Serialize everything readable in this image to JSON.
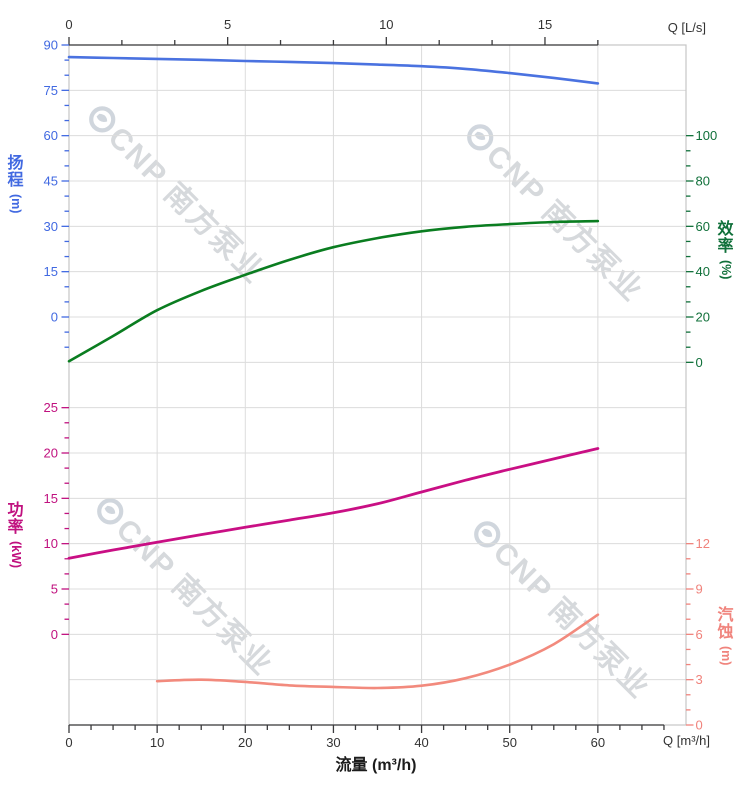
{
  "axes": {
    "top": {
      "title": "Q [L/s]",
      "ticks": [
        "0",
        "5",
        "10",
        "15"
      ]
    },
    "bottom": {
      "title": "流量 (m³/h)",
      "unit_label": "Q [m³/h]",
      "ticks": [
        "0",
        "10",
        "20",
        "30",
        "40",
        "50",
        "60"
      ]
    },
    "head": {
      "title_chars": [
        "扬",
        "程"
      ],
      "unit": "(m)",
      "ticks": [
        "90",
        "75",
        "60",
        "45",
        "30",
        "15",
        "0"
      ]
    },
    "eff": {
      "title_chars": [
        "效",
        "率"
      ],
      "unit": "(%)",
      "ticks": [
        "100",
        "80",
        "60",
        "40",
        "20",
        "0"
      ]
    },
    "power": {
      "title_chars": [
        "功",
        "率"
      ],
      "unit": "(kW)",
      "ticks": [
        "25",
        "20",
        "15",
        "10",
        "5",
        "0"
      ]
    },
    "npsh": {
      "title_chars": [
        "汽",
        "蚀"
      ],
      "unit": "(m)",
      "ticks": [
        "12",
        "9",
        "6",
        "3",
        "0"
      ]
    }
  },
  "colors": {
    "head_label": "#4169e1",
    "head_curve": "#4a72e0",
    "eff_label": "#10703a",
    "eff_curve": "#0a7d20",
    "power_label": "#c0117f",
    "power_curve": "#c90f84",
    "npsh_label": "#f0837c",
    "npsh_curve": "#f28a7d",
    "axis_dark": "#3a3a3c",
    "tick_text_dark": "#333333",
    "grid": "#dcdcdc",
    "border": "#c6c6c6",
    "watermark_text": "#d2d5d9",
    "watermark_logo": "#ccd2da"
  },
  "watermark": {
    "logo": "cnp-logo",
    "text_latin": "CNP",
    "text_cn": "南方泵业"
  },
  "chart_data": {
    "type": "line",
    "title": "",
    "x_axis": {
      "bottom_label": "流量 (m³/h)",
      "bottom_ticks_m3h": [
        0,
        10,
        20,
        30,
        40,
        50,
        60
      ],
      "bottom_range_m3h": [
        0,
        70
      ],
      "top_label": "Q [L/s]",
      "top_ticks_Ls": [
        0,
        5,
        10,
        15
      ]
    },
    "series": [
      {
        "name": "扬程",
        "unit": "m",
        "axis": "head",
        "axis_range": [
          0,
          90
        ],
        "x": [
          0,
          5,
          10,
          15,
          20,
          25,
          30,
          35,
          40,
          45,
          50,
          55,
          60
        ],
        "y": [
          86,
          85.7,
          85.4,
          85.1,
          84.7,
          84.4,
          84,
          83.5,
          83,
          82.1,
          80.7,
          79.1,
          77.3
        ]
      },
      {
        "name": "效率",
        "unit": "%",
        "axis": "eff",
        "axis_range": [
          0,
          100
        ],
        "x": [
          0,
          5,
          10,
          15,
          20,
          25,
          30,
          35,
          40,
          45,
          50,
          55,
          60
        ],
        "y": [
          0.5,
          11.6,
          23,
          31.5,
          38.6,
          45.2,
          50.8,
          54.8,
          57.8,
          59.8,
          61,
          61.9,
          62.3
        ]
      },
      {
        "name": "功率",
        "unit": "kW",
        "axis": "power",
        "axis_range": [
          0,
          25
        ],
        "x": [
          0,
          5,
          10,
          15,
          20,
          25,
          30,
          35,
          40,
          45,
          50,
          55,
          60
        ],
        "y": [
          8.4,
          9.3,
          10.15,
          11,
          11.8,
          12.6,
          13.4,
          14.4,
          15.7,
          17,
          18.2,
          19.35,
          20.5
        ]
      },
      {
        "name": "汽蚀",
        "unit": "m",
        "axis": "npsh",
        "axis_range": [
          0,
          12
        ],
        "x": [
          10,
          15,
          20,
          25,
          30,
          35,
          40,
          45,
          50,
          55,
          60
        ],
        "y": [
          2.9,
          3,
          2.85,
          2.62,
          2.52,
          2.45,
          2.6,
          3.1,
          4,
          5.35,
          7.3
        ]
      }
    ],
    "grid": true,
    "legend": "none"
  }
}
